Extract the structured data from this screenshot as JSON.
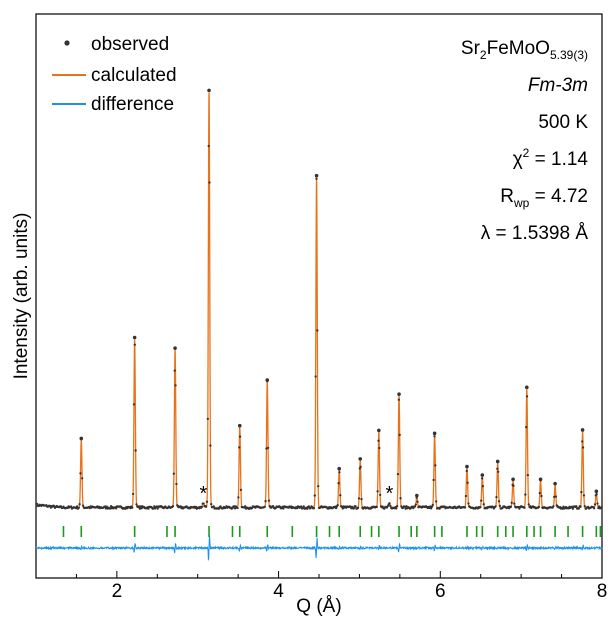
{
  "chart_data": {
    "type": "line",
    "title": "",
    "xlabel": "Q (Å)",
    "ylabel": "Intensity (arb. units)",
    "xlim": [
      1.0,
      8.0
    ],
    "ylim": [
      -0.05,
      1.0
    ],
    "x_ticks": [
      2,
      4,
      6,
      8
    ],
    "y_ticks": [],
    "grid": false,
    "legend": {
      "placement": "top-left",
      "entries": [
        {
          "label": "observed",
          "marker": "dot",
          "color": "#333333"
        },
        {
          "label": "calculated",
          "marker": "line",
          "color": "#e8731a"
        },
        {
          "label": "difference",
          "marker": "line",
          "color": "#1e90e8"
        }
      ]
    },
    "annotations": {
      "formula_base": "Sr",
      "formula_sub1": "2",
      "formula_mid": "FeMoO",
      "formula_sub2": "5.39(3)",
      "space_group": "Fm-3m",
      "temperature": "500 K",
      "chi_symbol": "χ",
      "chi_sup": "2",
      "chi_value": " = 1.14",
      "rwp_symbol": "R",
      "rwp_sub": "wp",
      "rwp_value": " = 4.72",
      "wavelength": "λ = 1.5398 Å",
      "impurity_marker": "*"
    },
    "impurity_peaks_q": [
      3.07,
      5.37
    ],
    "background_level": 0.02,
    "peaks": [
      {
        "q": 1.56,
        "intensity": 0.158
      },
      {
        "q": 2.22,
        "intensity": 0.395
      },
      {
        "q": 2.72,
        "intensity": 0.37
      },
      {
        "q": 3.14,
        "intensity": 0.975
      },
      {
        "q": 3.52,
        "intensity": 0.188
      },
      {
        "q": 3.86,
        "intensity": 0.295
      },
      {
        "q": 4.47,
        "intensity": 0.775
      },
      {
        "q": 4.75,
        "intensity": 0.087
      },
      {
        "q": 5.01,
        "intensity": 0.11
      },
      {
        "q": 5.24,
        "intensity": 0.177
      },
      {
        "q": 5.49,
        "intensity": 0.262
      },
      {
        "q": 5.71,
        "intensity": 0.024
      },
      {
        "q": 5.93,
        "intensity": 0.17
      },
      {
        "q": 6.33,
        "intensity": 0.092
      },
      {
        "q": 6.52,
        "intensity": 0.072
      },
      {
        "q": 6.71,
        "intensity": 0.104
      },
      {
        "q": 6.9,
        "intensity": 0.062
      },
      {
        "q": 7.07,
        "intensity": 0.278
      },
      {
        "q": 7.24,
        "intensity": 0.062
      },
      {
        "q": 7.42,
        "intensity": 0.052
      },
      {
        "q": 7.76,
        "intensity": 0.178
      },
      {
        "q": 7.93,
        "intensity": 0.034
      }
    ],
    "bragg_ticks": {
      "color": "#1a9a1a",
      "q": [
        1.34,
        1.56,
        2.22,
        2.62,
        2.72,
        3.14,
        3.43,
        3.52,
        3.86,
        4.17,
        4.47,
        4.63,
        4.75,
        5.01,
        5.15,
        5.24,
        5.49,
        5.64,
        5.71,
        5.93,
        6.02,
        6.33,
        6.45,
        6.52,
        6.71,
        6.81,
        6.9,
        7.07,
        7.16,
        7.24,
        7.42,
        7.58,
        7.76,
        7.93,
        7.98
      ]
    }
  }
}
